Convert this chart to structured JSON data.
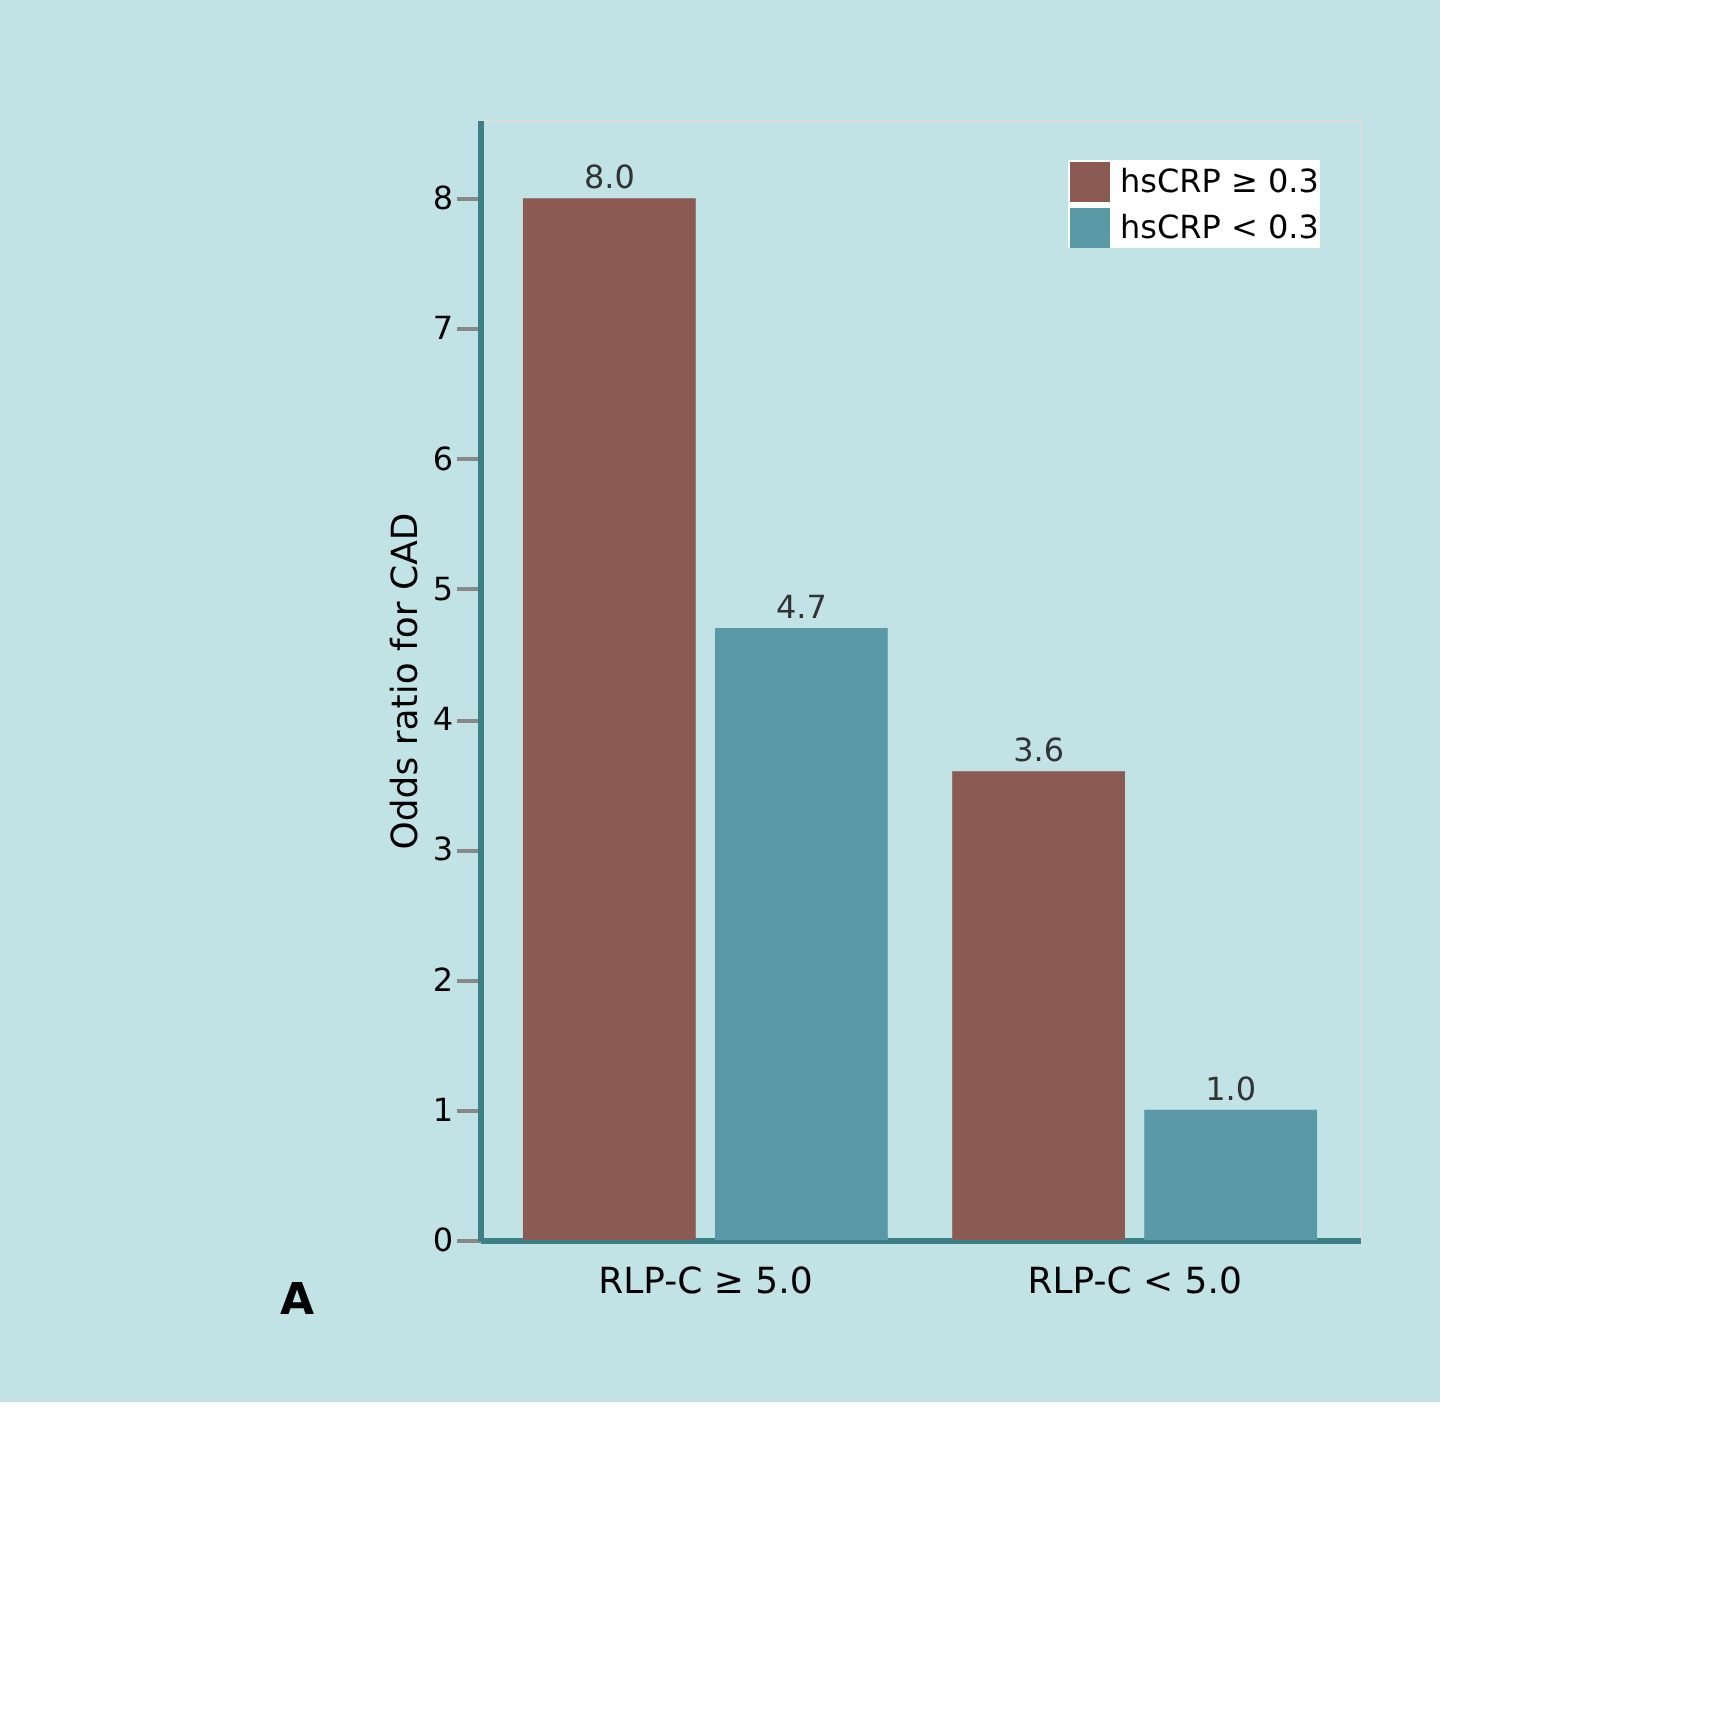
{
  "chart_data": {
    "type": "bar",
    "ylabel": "Odds ratio for CAD",
    "categories": [
      "RLP-C ≥ 5.0",
      "RLP-C < 5.0"
    ],
    "series": [
      {
        "name": "hsCRP ≥ 0.3",
        "color": "#8b5a52",
        "values": [
          8.0,
          3.6
        ],
        "value_labels": [
          "8.0",
          "3.6"
        ]
      },
      {
        "name": "hsCRP < 0.3",
        "color": "#5a9aa6",
        "values": [
          4.7,
          1.0
        ],
        "value_labels": [
          "4.7",
          "1.0"
        ]
      }
    ],
    "ylim": [
      0,
      8.6
    ],
    "yticks": [
      0,
      1,
      2,
      3,
      4,
      5,
      6,
      7,
      8
    ],
    "grid": false,
    "legend": "top right",
    "annotations": [
      "A"
    ]
  }
}
